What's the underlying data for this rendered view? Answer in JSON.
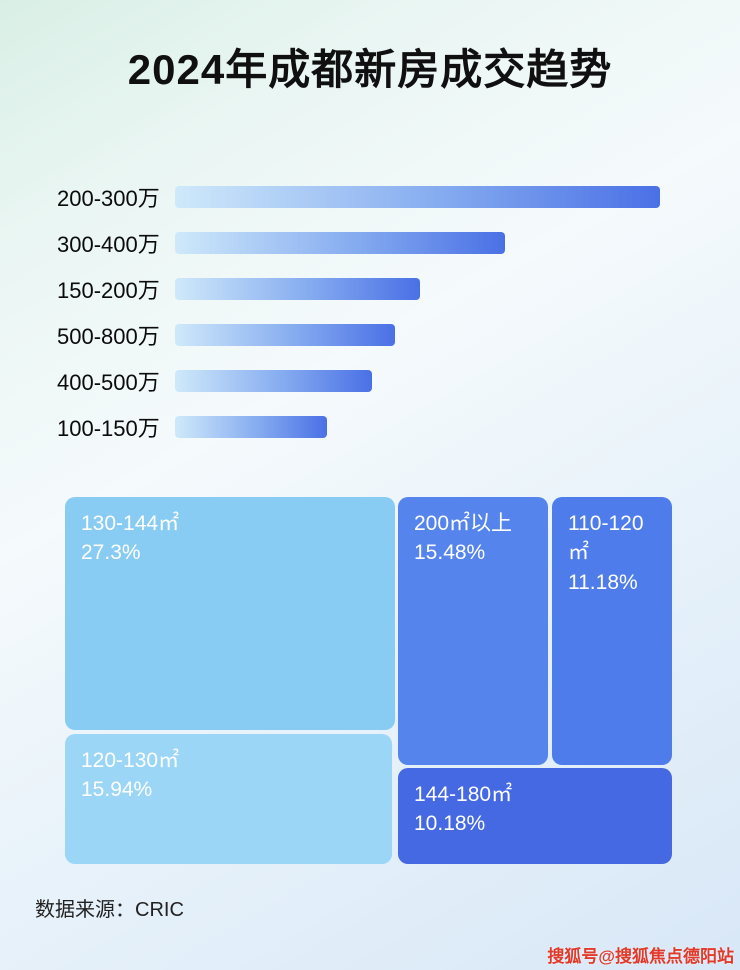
{
  "page": {
    "title": "2024年成都新房成交趋势",
    "source": "数据来源：CRIC",
    "watermark": "搜狐号@搜狐焦点德阳站"
  },
  "colors": {
    "title_text": "#101010",
    "bar_gradient_start": "#cfe9fa",
    "bar_gradient_end": "#4a70e6",
    "block_130_144": "#89ccf3",
    "block_120_130": "#9cd6f7",
    "block_200_plus": "#5585ec",
    "block_110_120": "#4e7cea",
    "block_144_180": "#4569e3",
    "watermark_text": "#e23a2a"
  },
  "chart_data": [
    {
      "type": "bar",
      "orientation": "horizontal",
      "title": "2024年成都新房成交趋势",
      "categories": [
        "200-300万",
        "300-400万",
        "150-200万",
        "500-800万",
        "400-500万",
        "100-150万"
      ],
      "values": [
        100,
        68,
        50.5,
        45.4,
        40.6,
        31.3
      ],
      "value_unit": "relative bar length, % of longest bar (bars carry no printed numbers)",
      "xlabel": "",
      "ylabel": "",
      "grid": false,
      "legend": "none"
    },
    {
      "type": "treemap",
      "title": "",
      "items": [
        {
          "label": "130-144㎡",
          "value": 27.3,
          "display": "27.3%"
        },
        {
          "label": "200㎡以上",
          "value": 15.48,
          "display": "15.48%"
        },
        {
          "label": "110-120㎡",
          "value": 11.18,
          "display": "11.18%"
        },
        {
          "label": "120-130㎡",
          "value": 15.94,
          "display": "15.94%"
        },
        {
          "label": "144-180㎡",
          "value": 10.18,
          "display": "10.18%"
        }
      ]
    }
  ]
}
